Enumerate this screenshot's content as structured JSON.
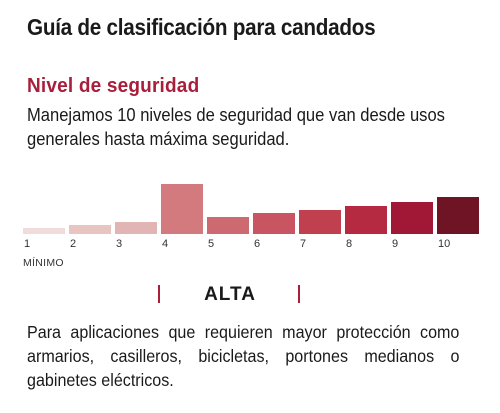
{
  "header": {
    "title": "Guía de clasificación para candados"
  },
  "section": {
    "subtitle": "Nivel de seguridad",
    "subtitle_color": "#a91e3b",
    "description": "Manejamos 10 niveles de seguridad que van desde usos generales hasta máxima seguridad."
  },
  "scale": {
    "levels": [
      "1",
      "2",
      "3",
      "4",
      "5",
      "6",
      "7",
      "8",
      "9",
      "10"
    ],
    "min_label": "MÍNIMO",
    "highlighted_level": 4,
    "colors": [
      "#f0dcda",
      "#e8c5c3",
      "#e1b5b4",
      "#d27a7d",
      "#cd6a71",
      "#c85561",
      "#c1404f",
      "#b52a40",
      "#a11736",
      "#6f1424"
    ]
  },
  "rating": {
    "name": "ALTA",
    "marker_color": "#a91e3b",
    "usage": "Para aplicaciones que requieren mayor protección como armarios, casilleros, bicicletas, portones medianos o gabinetes eléctricos."
  }
}
